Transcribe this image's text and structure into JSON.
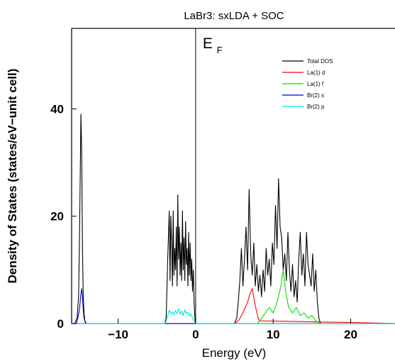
{
  "chart_data": {
    "type": "line",
    "title": "LaBr3: sxLDA + SOC",
    "xlabel": "Energy (eV)",
    "ylabel": "Density of States (states/eV−unit cell)",
    "xlim": [
      -16,
      27
    ],
    "ylim": [
      0,
      55
    ],
    "xticks": [
      -10,
      0,
      10,
      20
    ],
    "xtick_labels": [
      "−10",
      "0",
      "10",
      "20"
    ],
    "yticks": [
      0,
      20,
      40
    ],
    "ytick_labels": [
      "0",
      "20",
      "40"
    ],
    "fermi_label": "E",
    "fermi_subscript": "F",
    "fermi_energy": 0,
    "legend_position": "top-right",
    "series": [
      {
        "name": "Total DOS",
        "color": "#000000",
        "x": [
          -16,
          -15.6,
          -15.3,
          -15.1,
          -15.0,
          -14.9,
          -14.8,
          -14.7,
          -14.6,
          -14.5,
          -14.4,
          -14.3,
          -14.1,
          -13.9,
          -4.0,
          -3.8,
          -3.6,
          -3.4,
          -3.3,
          -3.2,
          -3.1,
          -3.0,
          -2.9,
          -2.8,
          -2.7,
          -2.6,
          -2.5,
          -2.4,
          -2.3,
          -2.2,
          -2.1,
          -2.0,
          -1.9,
          -1.8,
          -1.7,
          -1.6,
          -1.5,
          -1.4,
          -1.3,
          -1.2,
          -1.1,
          -1.0,
          -0.9,
          -0.8,
          -0.7,
          -0.6,
          -0.5,
          -0.4,
          -0.3,
          -0.2,
          -0.1,
          0.0,
          5.0,
          5.3,
          5.5,
          5.7,
          5.9,
          6.1,
          6.3,
          6.5,
          6.7,
          6.9,
          7.1,
          7.3,
          7.5,
          7.7,
          7.9,
          8.1,
          8.3,
          8.5,
          8.7,
          8.9,
          9.1,
          9.3,
          9.5,
          9.7,
          9.9,
          10.1,
          10.3,
          10.5,
          10.7,
          10.9,
          11.1,
          11.3,
          11.5,
          11.7,
          11.9,
          12.1,
          12.3,
          12.5,
          12.7,
          12.9,
          13.1,
          13.3,
          13.5,
          13.7,
          13.9,
          14.1,
          14.3,
          14.5,
          14.7,
          14.9,
          15.1,
          15.3,
          15.5,
          15.7,
          15.9,
          16.1,
          27
        ],
        "y": [
          0,
          0,
          1,
          5,
          14,
          26,
          39,
          32,
          14,
          5,
          2,
          0.5,
          0,
          0,
          0,
          1,
          12,
          21,
          8,
          20,
          15,
          7,
          21,
          9,
          14,
          10,
          18,
          7,
          24,
          12,
          18,
          9,
          15,
          8,
          21,
          10,
          16,
          8,
          19,
          11,
          14,
          7,
          17,
          9,
          15,
          8,
          12,
          6,
          10,
          4,
          1,
          0,
          0,
          1,
          4,
          8,
          14,
          7,
          12,
          18,
          10,
          25,
          13,
          9,
          15,
          7,
          11,
          6,
          9,
          5,
          10,
          6,
          14,
          9,
          12,
          7,
          15,
          11,
          22,
          14,
          27,
          18,
          16,
          10,
          13,
          8,
          17,
          10,
          6,
          11,
          5,
          8,
          4,
          12,
          17,
          9,
          13,
          7,
          17,
          11,
          9,
          7,
          13,
          6,
          10,
          4,
          1,
          0,
          0
        ]
      },
      {
        "name": "La(1) d",
        "color": "#ff0000",
        "x": [
          -16,
          5.0,
          5.5,
          5.8,
          6.1,
          6.4,
          6.7,
          7.0,
          7.3,
          7.6,
          7.9,
          8.2,
          27
        ],
        "y": [
          0,
          0,
          0.5,
          1.2,
          2,
          3,
          4,
          5.5,
          6.5,
          4,
          2,
          0.5,
          0
        ]
      },
      {
        "name": "La(1) f",
        "color": "#00dd00",
        "x": [
          -16,
          8.0,
          8.5,
          9.0,
          9.5,
          10.0,
          10.5,
          11.0,
          11.3,
          11.6,
          12.0,
          12.5,
          13.0,
          13.5,
          14.0,
          14.5,
          15.0,
          15.5,
          16.0,
          27
        ],
        "y": [
          0,
          0,
          1,
          2,
          3,
          2,
          4,
          7,
          10,
          6,
          3,
          2,
          3,
          1.5,
          2,
          1,
          1.5,
          0.5,
          0,
          0
        ]
      },
      {
        "name": "Br(2) s",
        "color": "#0000cc",
        "x": [
          -16,
          -15.4,
          -15.2,
          -15.0,
          -14.9,
          -14.8,
          -14.7,
          -14.6,
          -14.5,
          -14.4,
          -14.2,
          27
        ],
        "y": [
          0,
          0,
          1,
          2.5,
          4,
          5.5,
          6.5,
          5,
          2.5,
          1,
          0,
          0
        ]
      },
      {
        "name": "Br(2) p",
        "color": "#00e5e5",
        "x": [
          -16,
          -4.0,
          -3.8,
          -3.6,
          -3.4,
          -3.2,
          -3.0,
          -2.8,
          -2.6,
          -2.4,
          -2.2,
          -2.0,
          -1.8,
          -1.6,
          -1.4,
          -1.2,
          -1.0,
          -0.8,
          -0.6,
          -0.4,
          -0.2,
          0.0,
          27
        ],
        "y": [
          0,
          0,
          0.5,
          1.5,
          2.5,
          1.8,
          2.2,
          1.6,
          2.4,
          1.8,
          2.8,
          1.7,
          2.3,
          1.5,
          2.6,
          1.8,
          2.2,
          1.4,
          1.8,
          1.0,
          0.5,
          0,
          0
        ]
      }
    ]
  }
}
